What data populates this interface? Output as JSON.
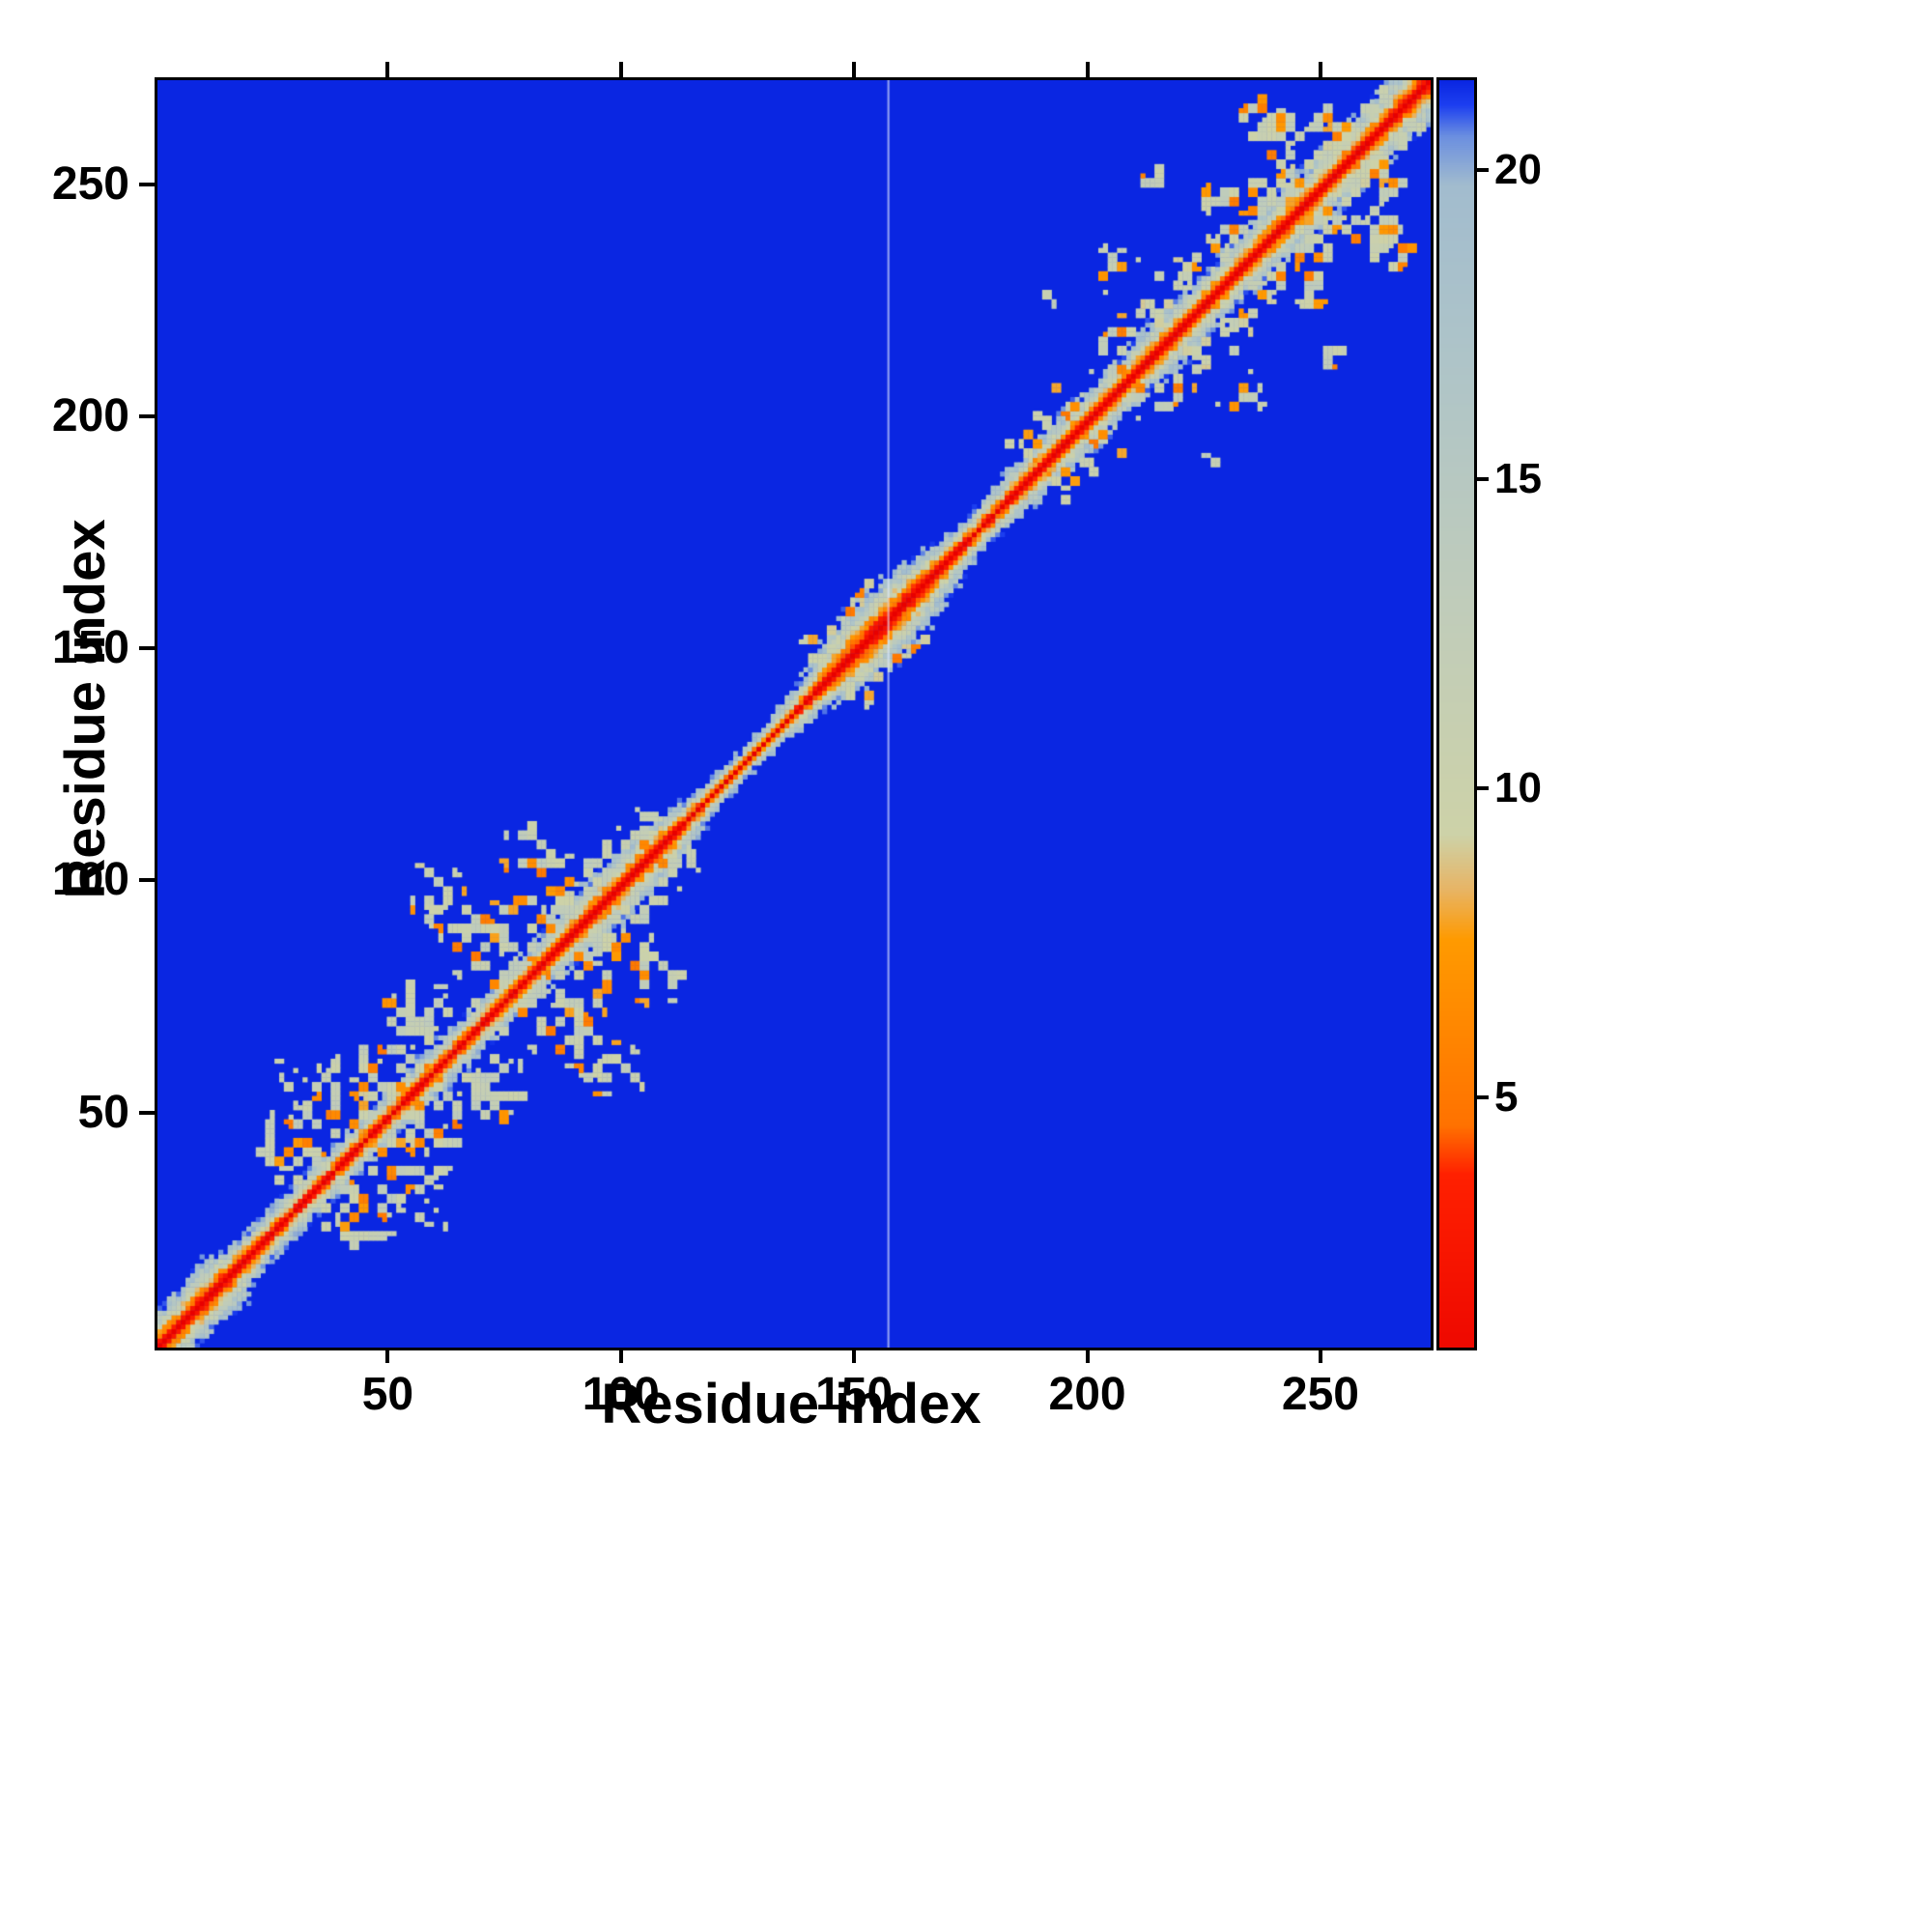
{
  "chart_data": {
    "type": "heatmap",
    "title": "",
    "xlabel": "Residue index",
    "ylabel": "Residue index",
    "x_ticks": [
      50,
      100,
      150,
      200,
      250
    ],
    "y_ticks": [
      50,
      100,
      150,
      200,
      250
    ],
    "axis_max": 273,
    "n_residues": 272,
    "grid": false,
    "legend": "none",
    "value_units": "distance",
    "background_value": 21.5,
    "artifact_line_x": 157,
    "colorbar": {
      "position": "right",
      "ticks": [
        5,
        10,
        15,
        20
      ],
      "vmin": 1,
      "vmax": 21.5
    },
    "colormap_stops": [
      {
        "v": 0.0,
        "c": "#e80000"
      },
      {
        "v": 3.8,
        "c": "#ff2000"
      },
      {
        "v": 4.6,
        "c": "#ff7200"
      },
      {
        "v": 7.6,
        "c": "#ff9a00"
      },
      {
        "v": 8.4,
        "c": "#e8b464"
      },
      {
        "v": 9.3,
        "c": "#cdd2a8"
      },
      {
        "v": 13.0,
        "c": "#c0ccba"
      },
      {
        "v": 17.0,
        "c": "#aec4c8"
      },
      {
        "v": 19.8,
        "c": "#a2bcce"
      },
      {
        "v": 20.6,
        "c": "#6b8fe0"
      },
      {
        "v": 21.1,
        "c": "#1d3ff0"
      },
      {
        "v": 21.5,
        "c": "#0a26e2"
      }
    ],
    "diagonal_band_profile": [
      [
        0,
        8
      ],
      [
        14,
        9
      ],
      [
        22,
        6
      ],
      [
        40,
        5.5
      ],
      [
        60,
        6
      ],
      [
        80,
        6
      ],
      [
        95,
        8
      ],
      [
        108,
        8
      ],
      [
        118,
        4
      ],
      [
        132,
        3.5
      ],
      [
        140,
        6
      ],
      [
        150,
        11
      ],
      [
        158,
        11
      ],
      [
        166,
        8
      ],
      [
        174,
        5
      ],
      [
        182,
        6
      ],
      [
        192,
        7
      ],
      [
        205,
        7
      ],
      [
        215,
        8
      ],
      [
        225,
        7
      ],
      [
        240,
        8
      ],
      [
        255,
        8
      ],
      [
        272,
        9
      ]
    ],
    "contact_clusters": [
      {
        "x": 30,
        "y": 42,
        "r": 10,
        "d": 0.5
      },
      {
        "x": 42,
        "y": 26,
        "r": 6,
        "d": 0.4
      },
      {
        "x": 38,
        "y": 33,
        "r": 8,
        "d": 0.5
      },
      {
        "x": 45,
        "y": 55,
        "r": 12,
        "d": 0.55
      },
      {
        "x": 50,
        "y": 30,
        "r": 7,
        "d": 0.4
      },
      {
        "x": 55,
        "y": 48,
        "r": 10,
        "d": 0.5
      },
      {
        "x": 58,
        "y": 28,
        "r": 5,
        "d": 0.35
      },
      {
        "x": 60,
        "y": 45,
        "r": 8,
        "d": 0.5
      },
      {
        "x": 62,
        "y": 62,
        "r": 10,
        "d": 0.45
      },
      {
        "x": 70,
        "y": 57,
        "r": 10,
        "d": 0.5
      },
      {
        "x": 70,
        "y": 85,
        "r": 9,
        "d": 0.35
      },
      {
        "x": 78,
        "y": 78,
        "r": 12,
        "d": 0.5
      },
      {
        "x": 85,
        "y": 95,
        "r": 10,
        "d": 0.5
      },
      {
        "x": 88,
        "y": 70,
        "r": 10,
        "d": 0.5
      },
      {
        "x": 95,
        "y": 88,
        "r": 12,
        "d": 0.55
      },
      {
        "x": 98,
        "y": 60,
        "r": 8,
        "d": 0.4
      },
      {
        "x": 103,
        "y": 100,
        "r": 9,
        "d": 0.55
      },
      {
        "x": 108,
        "y": 80,
        "r": 8,
        "d": 0.4
      },
      {
        "x": 110,
        "y": 105,
        "r": 7,
        "d": 0.5
      },
      {
        "x": 150,
        "y": 143,
        "r": 6,
        "d": 0.4
      },
      {
        "x": 160,
        "y": 152,
        "r": 7,
        "d": 0.35
      },
      {
        "x": 190,
        "y": 226,
        "r": 5,
        "d": 0.45
      },
      {
        "x": 195,
        "y": 188,
        "r": 7,
        "d": 0.5
      },
      {
        "x": 205,
        "y": 198,
        "r": 7,
        "d": 0.4
      },
      {
        "x": 214,
        "y": 251,
        "r": 4,
        "d": 0.45
      },
      {
        "x": 215,
        "y": 210,
        "r": 9,
        "d": 0.5
      },
      {
        "x": 222,
        "y": 215,
        "r": 8,
        "d": 0.5
      },
      {
        "x": 228,
        "y": 222,
        "r": 9,
        "d": 0.5
      },
      {
        "x": 232,
        "y": 205,
        "r": 6,
        "d": 0.35
      },
      {
        "x": 238,
        "y": 232,
        "r": 10,
        "d": 0.5
      },
      {
        "x": 245,
        "y": 240,
        "r": 10,
        "d": 0.55
      },
      {
        "x": 248,
        "y": 228,
        "r": 7,
        "d": 0.4
      },
      {
        "x": 252,
        "y": 247,
        "r": 9,
        "d": 0.5
      },
      {
        "x": 260,
        "y": 253,
        "r": 9,
        "d": 0.5
      },
      {
        "x": 262,
        "y": 238,
        "r": 8,
        "d": 0.45
      },
      {
        "x": 268,
        "y": 263,
        "r": 7,
        "d": 0.5
      }
    ]
  }
}
